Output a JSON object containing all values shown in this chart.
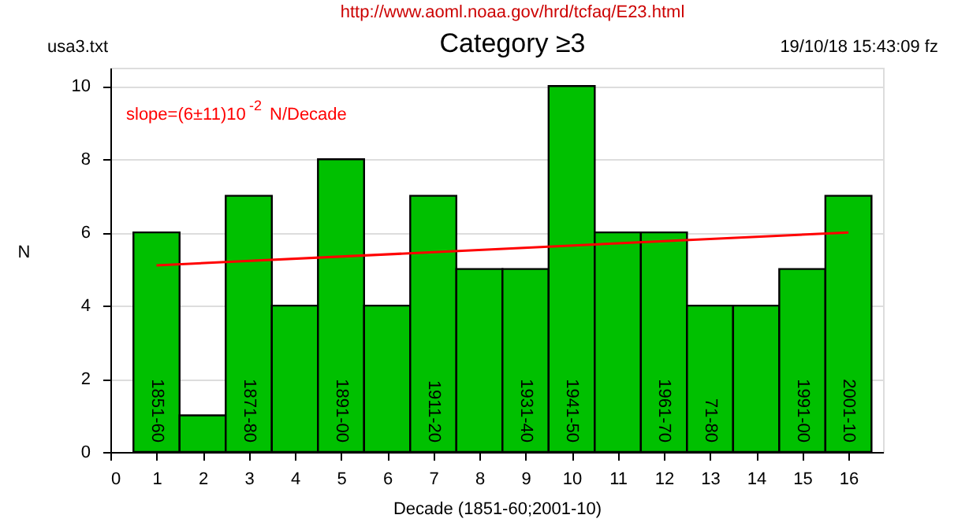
{
  "chart_data": {
    "type": "bar",
    "title": "Category ≥3",
    "xlabel": "Decade (1851-60;2001-10)",
    "ylabel": "N",
    "x": [
      1,
      2,
      3,
      4,
      5,
      6,
      7,
      8,
      9,
      10,
      11,
      12,
      13,
      14,
      15,
      16
    ],
    "series": [
      {
        "color": "#00c000",
        "values": [
          6,
          1,
          7,
          4,
          8,
          4,
          7,
          5,
          5,
          10,
          6,
          6,
          4,
          4,
          5,
          7
        ],
        "value_labels": [
          "1851-60",
          null,
          "1871-80",
          null,
          "1891-00",
          null,
          "1911-20",
          null,
          "1931-40",
          "1941-50",
          null,
          "1961-70",
          "71-80",
          null,
          "1991-00",
          "2001-10"
        ]
      },
      {
        "type": "line",
        "color": "#ff0000",
        "x": [
          1,
          16
        ],
        "values": [
          5.1,
          6.0
        ]
      }
    ],
    "xlim": [
      0,
      16.75
    ],
    "ylim": [
      0,
      10.5
    ],
    "xticks": [
      0,
      1,
      2,
      3,
      4,
      5,
      6,
      7,
      8,
      9,
      10,
      11,
      12,
      13,
      14,
      15,
      16
    ],
    "yticks": [
      0,
      2,
      4,
      6,
      8,
      10
    ],
    "grid": "y",
    "annotations": [
      "http://www.aoml.noaa.gov/hrd/tcfaq/E23.html",
      "usa3.txt",
      "19/10/18  15:43:09 fz",
      "slope=(6±11)10$^{-2}$ N/Decade"
    ]
  }
}
